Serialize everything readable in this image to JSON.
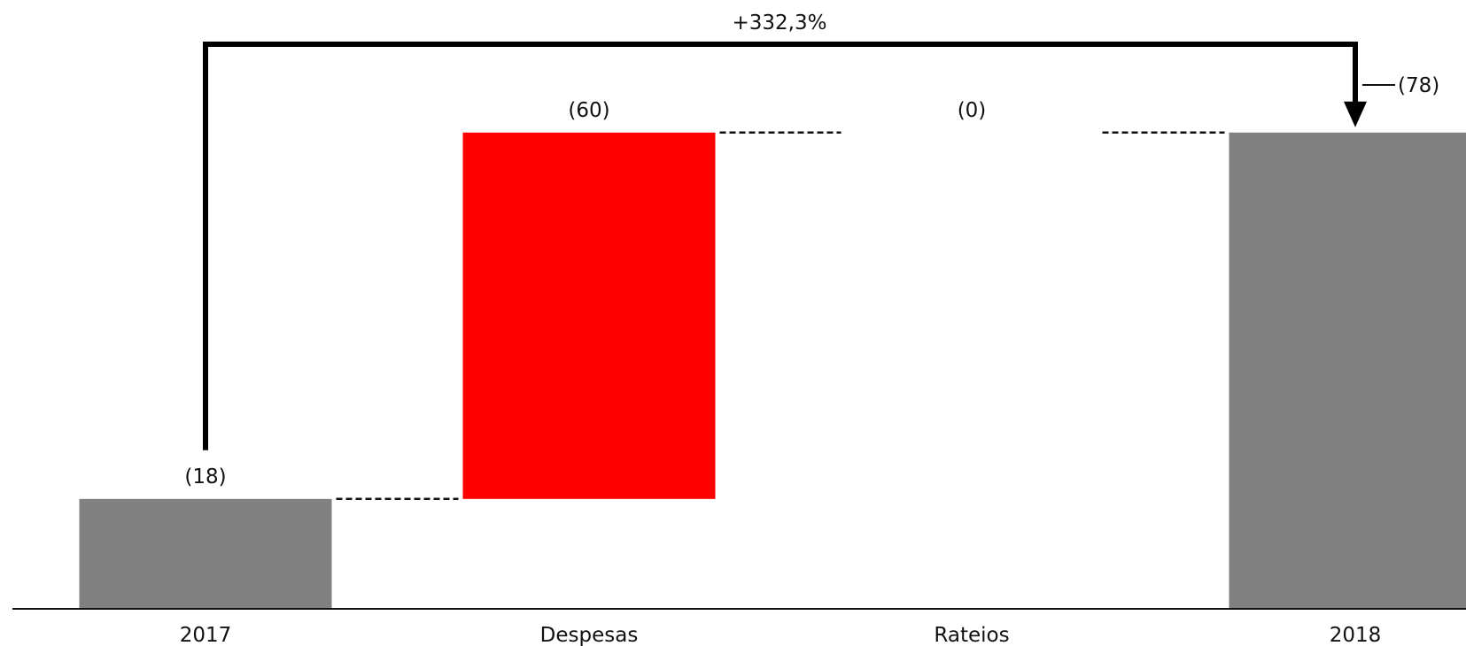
{
  "chart_data": {
    "type": "bar",
    "subtype": "waterfall",
    "categories": [
      "2017",
      "Despesas",
      "Rateios",
      "2018"
    ],
    "steps": [
      {
        "category": "2017",
        "kind": "total",
        "value": -18,
        "label": "(18)"
      },
      {
        "category": "Despesas",
        "kind": "delta",
        "value": -60,
        "label": "(60)"
      },
      {
        "category": "Rateios",
        "kind": "delta",
        "value": 0,
        "label": "(0)"
      },
      {
        "category": "2018",
        "kind": "total",
        "value": -78,
        "label": "(78)"
      }
    ],
    "change_annotation": {
      "from": "2017",
      "to": "2018",
      "label": "+332,3%"
    },
    "ylim": [
      0,
      -80
    ],
    "colors": {
      "total": "#808080",
      "decrease": "#ff0000",
      "increase": "#2e7d32",
      "axis": "#111111",
      "connector": "#111111"
    },
    "grid": false,
    "legend": "none"
  }
}
